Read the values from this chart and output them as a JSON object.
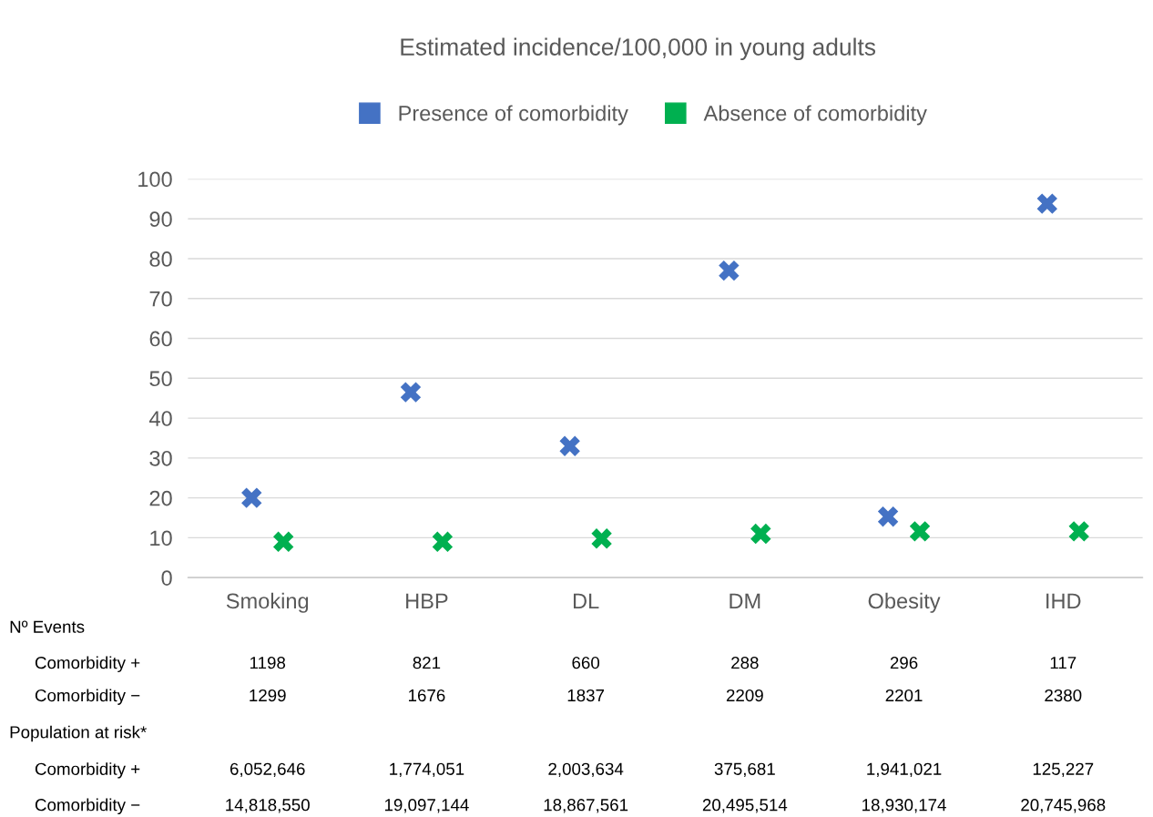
{
  "chart_data": {
    "type": "scatter",
    "title": "Estimated incidence/100,000 in young adults",
    "categories": [
      "Smoking",
      "HBP",
      "DL",
      "DM",
      "Obesity",
      "IHD"
    ],
    "series": [
      {
        "name": "Presence of comorbidity",
        "color": "#4472c4",
        "values": [
          20,
          46.5,
          33,
          77,
          15.3,
          93.8
        ]
      },
      {
        "name": "Absence of comorbidity",
        "color": "#00b050",
        "values": [
          9,
          9,
          9.8,
          11,
          11.6,
          11.6
        ]
      }
    ],
    "ylim": [
      0,
      100
    ],
    "yticks": [
      0,
      10,
      20,
      30,
      40,
      50,
      60,
      70,
      80,
      90,
      100
    ],
    "grid": "y",
    "legend": "top",
    "marker": "cross",
    "annotations": [
      "Nº Events",
      "Comorbidity +",
      "1198",
      "821",
      "660",
      "288",
      "296",
      "117",
      "Comorbidity −",
      "1299",
      "1676",
      "1837",
      "2209",
      "2201",
      "2380",
      "Population at risk*",
      "Comorbidity +",
      "6,052,646",
      "1,774,051",
      "2,003,634",
      "375,681",
      "1,941,021",
      "125,227",
      "Comorbidity −",
      "14,818,550",
      "19,097,144",
      "18,867,561",
      "20,495,514",
      "18,930,174",
      "20,745,968"
    ]
  }
}
